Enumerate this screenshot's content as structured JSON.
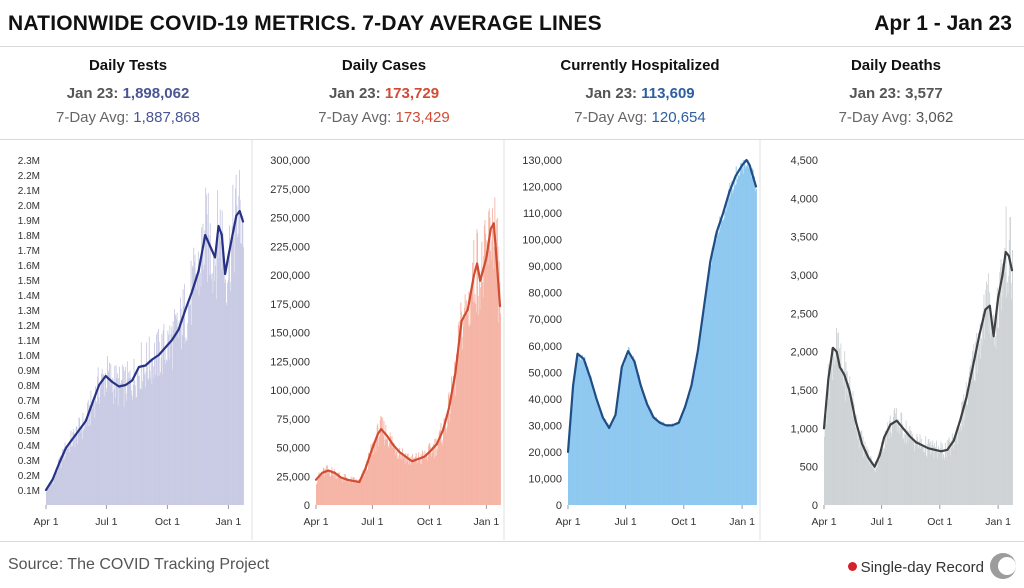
{
  "header": {
    "title": "NATIONWIDE COVID-19 METRICS. 7-DAY AVERAGE LINES",
    "date_range": "Apr 1 - Jan 23"
  },
  "panels": [
    {
      "name": "Daily Tests",
      "latest_label": "Jan 23:",
      "latest_value": "1,898,062",
      "avg_label": "7-Day Avg:",
      "avg_value": "1,887,868"
    },
    {
      "name": "Daily Cases",
      "latest_label": "Jan 23:",
      "latest_value": "173,729",
      "avg_label": "7-Day Avg:",
      "avg_value": "173,429"
    },
    {
      "name": "Currently Hospitalized",
      "latest_label": "Jan 23:",
      "latest_value": "113,609",
      "avg_label": "7-Day Avg:",
      "avg_value": "120,654"
    },
    {
      "name": "Daily Deaths",
      "latest_label": "Jan 23:",
      "latest_value": "3,577",
      "avg_label": "7-Day Avg:",
      "avg_value": "3,062"
    }
  ],
  "footer": {
    "source": "Source: The COVID Tracking Project",
    "legend_label": "Single-day Record"
  },
  "chart_data": [
    {
      "type": "area",
      "title": "Daily Tests",
      "x_ticks": [
        "Apr 1",
        "Jul 1",
        "Oct 1",
        "Jan 1"
      ],
      "x_tick_days": [
        0,
        91,
        183,
        275
      ],
      "x_range": [
        0,
        297
      ],
      "ylim": [
        0,
        2300000
      ],
      "y_ticks": [
        100000,
        200000,
        300000,
        400000,
        500000,
        600000,
        700000,
        800000,
        900000,
        1000000,
        1100000,
        1200000,
        1300000,
        1400000,
        1500000,
        1600000,
        1700000,
        1800000,
        1900000,
        2000000,
        2100000,
        2200000,
        2300000
      ],
      "y_tick_labels": [
        "0.1M",
        "0.2M",
        "0.3M",
        "0.4M",
        "0.5M",
        "0.6M",
        "0.7M",
        "0.8M",
        "0.9M",
        "1.0M",
        "1.1M",
        "1.2M",
        "1.3M",
        "1.4M",
        "1.5M",
        "1.6M",
        "1.7M",
        "1.8M",
        "1.9M",
        "2.0M",
        "2.1M",
        "2.2M",
        "2.3M"
      ],
      "colors": {
        "bars": "#c9cae4",
        "line": "#283285",
        "value": "#4a5596"
      },
      "series": [
        {
          "name": "7-Day Avg",
          "points": [
            [
              0,
              100000
            ],
            [
              10,
              170000
            ],
            [
              20,
              280000
            ],
            [
              30,
              380000
            ],
            [
              40,
              440000
            ],
            [
              50,
              500000
            ],
            [
              60,
              560000
            ],
            [
              70,
              680000
            ],
            [
              80,
              800000
            ],
            [
              90,
              860000
            ],
            [
              100,
              820000
            ],
            [
              110,
              790000
            ],
            [
              120,
              800000
            ],
            [
              130,
              830000
            ],
            [
              140,
              920000
            ],
            [
              150,
              930000
            ],
            [
              160,
              970000
            ],
            [
              170,
              1000000
            ],
            [
              180,
              1050000
            ],
            [
              190,
              1100000
            ],
            [
              200,
              1170000
            ],
            [
              210,
              1300000
            ],
            [
              220,
              1420000
            ],
            [
              230,
              1560000
            ],
            [
              240,
              1800000
            ],
            [
              248,
              1720000
            ],
            [
              255,
              1650000
            ],
            [
              260,
              1860000
            ],
            [
              265,
              1800000
            ],
            [
              270,
              1540000
            ],
            [
              275,
              1660000
            ],
            [
              282,
              1820000
            ],
            [
              287,
              1930000
            ],
            [
              292,
              1960000
            ],
            [
              297,
              1890000
            ]
          ]
        }
      ]
    },
    {
      "type": "area",
      "title": "Daily Cases",
      "x_ticks": [
        "Apr 1",
        "Jul 1",
        "Oct 1",
        "Jan 1"
      ],
      "x_tick_days": [
        0,
        91,
        183,
        275
      ],
      "x_range": [
        0,
        297
      ],
      "ylim": [
        0,
        300000
      ],
      "y_ticks": [
        0,
        25000,
        50000,
        75000,
        100000,
        125000,
        150000,
        175000,
        200000,
        225000,
        250000,
        275000,
        300000
      ],
      "y_tick_labels": [
        "0",
        "25,000",
        "50,000",
        "75,000",
        "100,000",
        "125,000",
        "150,000",
        "175,000",
        "200,000",
        "225,000",
        "250,000",
        "275,000",
        "300,000"
      ],
      "colors": {
        "bars": "#f5b5a6",
        "line": "#d04d32",
        "value": "#d24a34"
      },
      "series": [
        {
          "name": "7-Day Avg",
          "points": [
            [
              0,
              22000
            ],
            [
              10,
              28000
            ],
            [
              20,
              30000
            ],
            [
              30,
              28000
            ],
            [
              40,
              24000
            ],
            [
              50,
              22000
            ],
            [
              60,
              21000
            ],
            [
              70,
              20000
            ],
            [
              80,
              32000
            ],
            [
              90,
              48000
            ],
            [
              100,
              62000
            ],
            [
              105,
              66000
            ],
            [
              115,
              60000
            ],
            [
              125,
              52000
            ],
            [
              135,
              46000
            ],
            [
              145,
              42000
            ],
            [
              155,
              38000
            ],
            [
              165,
              40000
            ],
            [
              175,
              42000
            ],
            [
              185,
              47000
            ],
            [
              195,
              53000
            ],
            [
              205,
              65000
            ],
            [
              215,
              85000
            ],
            [
              225,
              115000
            ],
            [
              235,
              160000
            ],
            [
              245,
              170000
            ],
            [
              255,
              200000
            ],
            [
              260,
              210000
            ],
            [
              265,
              195000
            ],
            [
              275,
              215000
            ],
            [
              282,
              240000
            ],
            [
              287,
              245000
            ],
            [
              292,
              210000
            ],
            [
              297,
              173000
            ]
          ]
        }
      ]
    },
    {
      "type": "area",
      "title": "Currently Hospitalized",
      "x_ticks": [
        "Apr 1",
        "Jul 1",
        "Oct 1",
        "Jan 1"
      ],
      "x_tick_days": [
        0,
        91,
        183,
        275
      ],
      "x_range": [
        0,
        297
      ],
      "ylim": [
        0,
        130000
      ],
      "y_ticks": [
        0,
        10000,
        20000,
        30000,
        40000,
        50000,
        60000,
        70000,
        80000,
        90000,
        100000,
        110000,
        120000,
        130000
      ],
      "y_tick_labels": [
        "0",
        "10,000",
        "20,000",
        "30,000",
        "40,000",
        "50,000",
        "60,000",
        "70,000",
        "80,000",
        "90,000",
        "100,000",
        "110,000",
        "120,000",
        "130,000"
      ],
      "colors": {
        "bars": "#8ec8f0",
        "line": "#1f4d84",
        "value": "#2c5ea0"
      },
      "series": [
        {
          "name": "7-Day Avg",
          "points": [
            [
              0,
              20000
            ],
            [
              8,
              45000
            ],
            [
              15,
              57000
            ],
            [
              25,
              55000
            ],
            [
              35,
              48000
            ],
            [
              45,
              40000
            ],
            [
              55,
              33000
            ],
            [
              65,
              29000
            ],
            [
              75,
              34000
            ],
            [
              85,
              52000
            ],
            [
              95,
              58000
            ],
            [
              105,
              54000
            ],
            [
              115,
              45000
            ],
            [
              125,
              38000
            ],
            [
              135,
              33000
            ],
            [
              145,
              31000
            ],
            [
              155,
              30000
            ],
            [
              165,
              30000
            ],
            [
              175,
              31000
            ],
            [
              185,
              37000
            ],
            [
              195,
              45000
            ],
            [
              205,
              58000
            ],
            [
              215,
              75000
            ],
            [
              225,
              92000
            ],
            [
              235,
              103000
            ],
            [
              245,
              110000
            ],
            [
              255,
              118000
            ],
            [
              265,
              124000
            ],
            [
              275,
              128000
            ],
            [
              282,
              130000
            ],
            [
              287,
              128000
            ],
            [
              292,
              124000
            ],
            [
              297,
              120000
            ]
          ]
        }
      ]
    },
    {
      "type": "area",
      "title": "Daily Deaths",
      "x_ticks": [
        "Apr 1",
        "Jul 1",
        "Oct 1",
        "Jan 1"
      ],
      "x_tick_days": [
        0,
        91,
        183,
        275
      ],
      "x_range": [
        0,
        297
      ],
      "ylim": [
        0,
        4500
      ],
      "y_ticks": [
        0,
        500,
        1000,
        1500,
        2000,
        2500,
        3000,
        3500,
        4000,
        4500
      ],
      "y_tick_labels": [
        "0",
        "500",
        "1,000",
        "1,500",
        "2,000",
        "2,500",
        "3,000",
        "3,500",
        "4,000",
        "4,500"
      ],
      "colors": {
        "bars": "#cfd3d5",
        "line": "#3f4245",
        "value": "#555555"
      },
      "series": [
        {
          "name": "7-Day Avg",
          "points": [
            [
              0,
              1000
            ],
            [
              7,
              1650
            ],
            [
              14,
              2050
            ],
            [
              20,
              2000
            ],
            [
              25,
              1800
            ],
            [
              32,
              1700
            ],
            [
              40,
              1500
            ],
            [
              50,
              1100
            ],
            [
              60,
              800
            ],
            [
              70,
              620
            ],
            [
              80,
              500
            ],
            [
              88,
              650
            ],
            [
              95,
              880
            ],
            [
              105,
              1050
            ],
            [
              115,
              1100
            ],
            [
              125,
              1000
            ],
            [
              135,
              900
            ],
            [
              145,
              820
            ],
            [
              155,
              780
            ],
            [
              165,
              740
            ],
            [
              175,
              720
            ],
            [
              185,
              700
            ],
            [
              195,
              720
            ],
            [
              205,
              840
            ],
            [
              215,
              1100
            ],
            [
              225,
              1400
            ],
            [
              235,
              1800
            ],
            [
              245,
              2200
            ],
            [
              255,
              2550
            ],
            [
              262,
              2600
            ],
            [
              268,
              2200
            ],
            [
              275,
              2700
            ],
            [
              282,
              3000
            ],
            [
              287,
              3300
            ],
            [
              292,
              3250
            ],
            [
              297,
              3062
            ]
          ]
        }
      ]
    }
  ]
}
